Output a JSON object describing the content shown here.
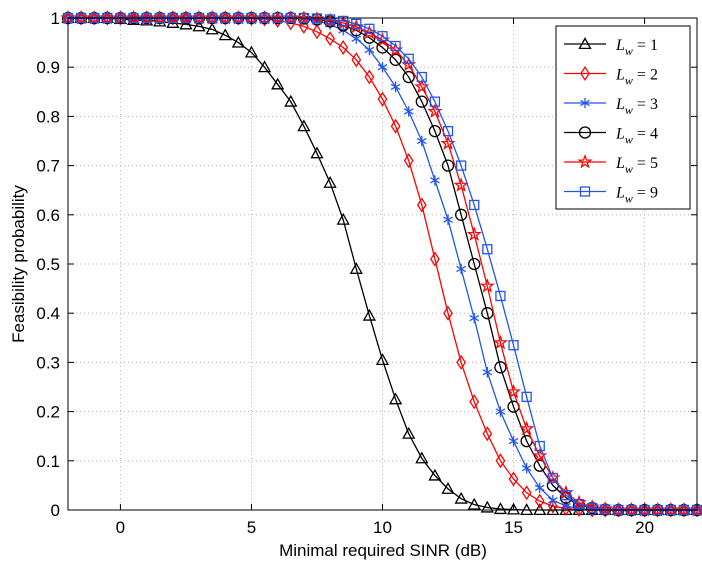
{
  "chart_data": {
    "type": "line",
    "title": "",
    "xlabel": "Minimal required SINR (dB)",
    "ylabel": "Feasibility probability",
    "xlim": [
      -2,
      22
    ],
    "ylim": [
      0,
      1
    ],
    "xticks": [
      0,
      5,
      10,
      15,
      20
    ],
    "yticks": [
      0,
      0.1,
      0.2,
      0.3,
      0.4,
      0.5,
      0.6,
      0.7,
      0.8,
      0.9,
      1
    ],
    "xtick_labels": [
      "0",
      "5",
      "10",
      "15",
      "20"
    ],
    "ytick_labels": [
      "0",
      "0.1",
      "0.2",
      "0.3",
      "0.4",
      "0.5",
      "0.6",
      "0.7",
      "0.8",
      "0.9",
      "1"
    ],
    "grid": true,
    "legend_position": "top-right",
    "x": [
      -2,
      -1.5,
      -1,
      -0.5,
      0,
      0.5,
      1,
      1.5,
      2,
      2.5,
      3,
      3.5,
      4,
      4.5,
      5,
      5.5,
      6,
      6.5,
      7,
      7.5,
      8,
      8.5,
      9,
      9.5,
      10,
      10.5,
      11,
      11.5,
      12,
      12.5,
      13,
      13.5,
      14,
      14.5,
      15,
      15.5,
      16,
      16.5,
      17,
      17.5,
      18,
      18.5,
      19,
      19.5,
      20,
      20.5,
      21,
      21.5,
      22
    ],
    "series": [
      {
        "name": "Lw=1",
        "legend_sub": "w",
        "legend_value": "1",
        "color": "#000000",
        "marker": "triangle",
        "values": [
          1,
          1,
          1,
          1,
          0.998,
          0.996,
          0.995,
          0.993,
          0.99,
          0.987,
          0.983,
          0.977,
          0.965,
          0.95,
          0.93,
          0.9,
          0.865,
          0.83,
          0.78,
          0.725,
          0.665,
          0.59,
          0.49,
          0.395,
          0.305,
          0.225,
          0.155,
          0.105,
          0.07,
          0.043,
          0.023,
          0.011,
          0.005,
          0.002,
          0.001,
          0,
          0,
          0,
          0,
          0,
          0,
          0,
          0,
          0,
          0,
          0,
          0,
          0,
          0
        ]
      },
      {
        "name": "Lw=2",
        "legend_sub": "w",
        "legend_value": "2",
        "color": "#ff0000",
        "marker": "diamond",
        "values": [
          1,
          1,
          1,
          1,
          1,
          1,
          1,
          1,
          1,
          1,
          1,
          1,
          1,
          1,
          0.999,
          0.998,
          0.995,
          0.99,
          0.983,
          0.972,
          0.958,
          0.94,
          0.915,
          0.88,
          0.835,
          0.78,
          0.71,
          0.62,
          0.51,
          0.4,
          0.3,
          0.22,
          0.155,
          0.1,
          0.063,
          0.035,
          0.018,
          0.008,
          0.003,
          0.001,
          0,
          0,
          0,
          0,
          0,
          0,
          0,
          0,
          0
        ]
      },
      {
        "name": "Lw=3",
        "legend_sub": "w",
        "legend_value": "3",
        "color": "#2255ee",
        "marker": "asterisk",
        "values": [
          1,
          1,
          1,
          1,
          1,
          1,
          1,
          1,
          1,
          1,
          1,
          1,
          1,
          1,
          1,
          1,
          1,
          1,
          0.998,
          0.994,
          0.987,
          0.975,
          0.958,
          0.935,
          0.9,
          0.86,
          0.81,
          0.75,
          0.67,
          0.59,
          0.49,
          0.39,
          0.28,
          0.2,
          0.14,
          0.085,
          0.045,
          0.02,
          0.008,
          0.003,
          0.001,
          0,
          0,
          0,
          0,
          0,
          0,
          0,
          0
        ]
      },
      {
        "name": "Lw=4",
        "legend_sub": "w",
        "legend_value": "4",
        "color": "#000000",
        "marker": "circle",
        "values": [
          1,
          1,
          1,
          1,
          1,
          1,
          1,
          1,
          1,
          1,
          1,
          1,
          1,
          1,
          1,
          1,
          1,
          1,
          0.999,
          0.997,
          0.993,
          0.985,
          0.975,
          0.96,
          0.94,
          0.915,
          0.88,
          0.83,
          0.77,
          0.7,
          0.6,
          0.5,
          0.4,
          0.29,
          0.21,
          0.14,
          0.09,
          0.05,
          0.025,
          0.01,
          0.004,
          0.001,
          0,
          0,
          0,
          0,
          0,
          0,
          0
        ]
      },
      {
        "name": "Lw=5",
        "legend_sub": "w",
        "legend_value": "5",
        "color": "#ff0000",
        "marker": "star",
        "values": [
          1,
          1,
          1,
          1,
          1,
          1,
          1,
          1,
          1,
          1,
          1,
          1,
          1,
          1,
          1,
          1,
          1,
          1,
          0.999,
          0.998,
          0.995,
          0.99,
          0.982,
          0.97,
          0.955,
          0.935,
          0.905,
          0.86,
          0.81,
          0.745,
          0.66,
          0.56,
          0.455,
          0.34,
          0.24,
          0.165,
          0.11,
          0.065,
          0.035,
          0.015,
          0.006,
          0.002,
          0,
          0,
          0,
          0,
          0,
          0,
          0
        ]
      },
      {
        "name": "Lw=9",
        "legend_sub": "w",
        "legend_value": "9",
        "color": "#2255ee",
        "marker": "square",
        "values": [
          1,
          1,
          1,
          1,
          1,
          1,
          1,
          1,
          1,
          1,
          1,
          1,
          1,
          1,
          1,
          1,
          1,
          1,
          1,
          0.999,
          0.997,
          0.994,
          0.988,
          0.978,
          0.963,
          0.943,
          0.917,
          0.88,
          0.83,
          0.77,
          0.7,
          0.62,
          0.53,
          0.435,
          0.335,
          0.23,
          0.13,
          0.065,
          0.03,
          0.012,
          0.004,
          0.001,
          0,
          0,
          0,
          0,
          0,
          0,
          0
        ]
      }
    ]
  }
}
